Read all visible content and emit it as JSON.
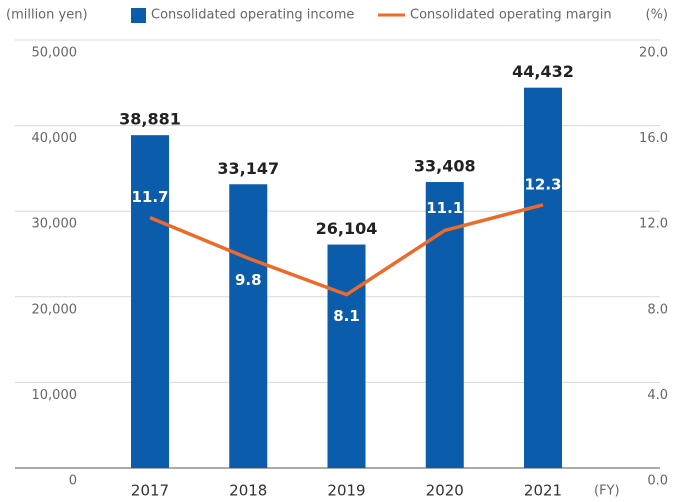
{
  "chart_data": {
    "type": "bar_line",
    "y_label": "(million yen)",
    "y2_label": "(%)",
    "x_label": "(FY)",
    "categories": [
      "2017",
      "2018",
      "2019",
      "2020",
      "2021"
    ],
    "series": [
      {
        "name": "Consolidated operating income",
        "color": "#0b5cab",
        "type": "bar",
        "values": [
          38881,
          33147,
          26104,
          33408,
          44432
        ],
        "value_labels": [
          "38,881",
          "33,147",
          "26,104",
          "33,408",
          "44,432"
        ]
      },
      {
        "name": "Consolidated operating margin",
        "color": "#ec6a2c",
        "type": "line",
        "axis": "y2",
        "values": [
          11.7,
          9.8,
          8.1,
          11.1,
          12.3
        ]
      }
    ],
    "ylim": [
      0,
      50000
    ],
    "yticks": [
      0,
      {
        "value": 10000,
        "label": "10,000"
      },
      {
        "value": 20000,
        "label": "20,000"
      },
      {
        "value": 30000,
        "label": "30,000"
      },
      {
        "value": 40000,
        "label": "40,000"
      },
      {
        "value": 50000,
        "label": "50,000"
      }
    ],
    "y2lim": [
      0,
      20
    ],
    "y2ticks": [
      {
        "value": 0,
        "label": "0.0"
      },
      {
        "value": 4,
        "label": "4.0"
      },
      {
        "value": 8,
        "label": "8.0"
      },
      {
        "value": 12,
        "label": "12.0"
      },
      {
        "value": 16,
        "label": "16.0"
      },
      {
        "value": 20,
        "label": "20.0"
      }
    ],
    "grid": true,
    "legend": "top"
  }
}
